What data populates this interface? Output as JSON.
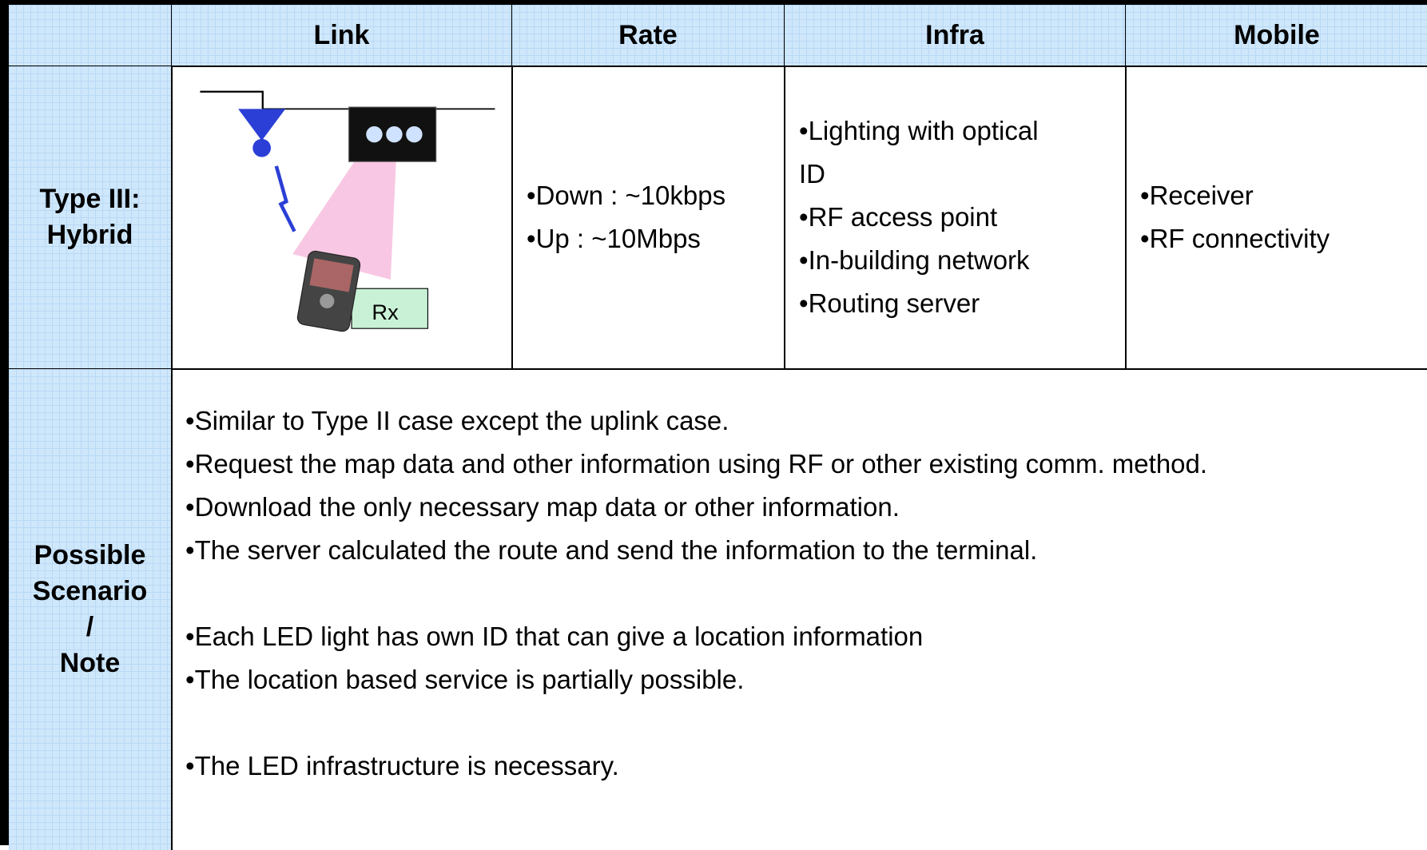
{
  "table": {
    "header": [
      "Link",
      "Rate",
      "Infra",
      "Mobile"
    ],
    "rows": [
      {
        "label": [
          "Type III:",
          "Hybrid"
        ],
        "diagram_label": "Rx",
        "rate": [
          "Down : ~10kbps",
          "Up : ~10Mbps"
        ],
        "infra": [
          "Lighting with optical ID",
          "RF access point",
          "In-building network",
          "Routing server"
        ],
        "mobile": [
          "Receiver",
          "RF connectivity"
        ]
      },
      {
        "label": [
          "Possible",
          "Scenario",
          "/",
          "Note"
        ],
        "notes": [
          [
            "Similar to Type II case except the uplink case.",
            "Request the map data and other information using RF or other existing comm. method.",
            "Download the only necessary map data or other information.",
            "The server calculated the route and send the information to the terminal."
          ],
          [
            "Each LED light has own ID that can give a location information",
            "The location based service is partially possible."
          ],
          [
            "The LED infrastructure is necessary."
          ]
        ]
      }
    ]
  }
}
